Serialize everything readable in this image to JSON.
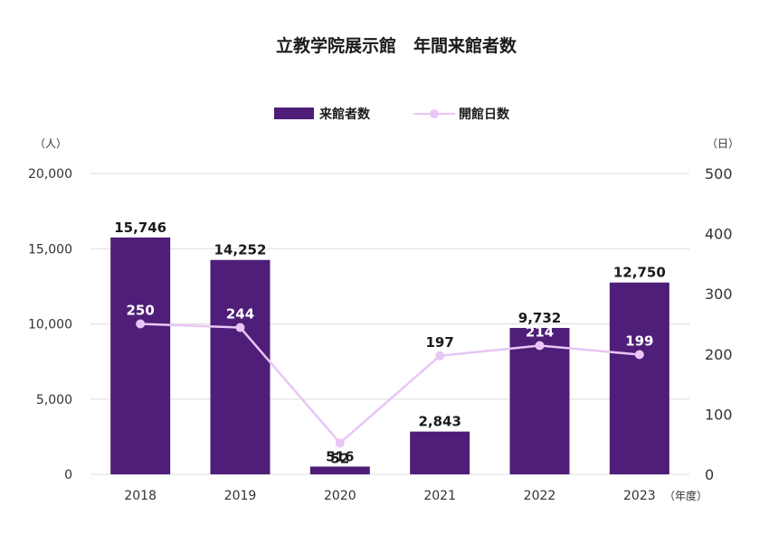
{
  "chart_data": {
    "type": "bar",
    "title": "立教学院展示館　年間来館者数",
    "categories": [
      "2018",
      "2019",
      "2020",
      "2021",
      "2022",
      "2023"
    ],
    "series": [
      {
        "name": "来館者数",
        "type": "bar",
        "axis": "left",
        "values": [
          15746,
          14252,
          516,
          2843,
          9732,
          12750
        ],
        "labels": [
          "15,746",
          "14,252",
          "516",
          "2,843",
          "9,732",
          "12,750"
        ],
        "color": "#4e1e78"
      },
      {
        "name": "開館日数",
        "type": "line",
        "axis": "right",
        "values": [
          250,
          244,
          52,
          197,
          214,
          199
        ],
        "labels": [
          "250",
          "244",
          "52",
          "197",
          "214",
          "199"
        ],
        "color": "#e8c6f5"
      }
    ],
    "y_left": {
      "unit": "（人）",
      "ylim": [
        0,
        20000
      ],
      "ticks": [
        "0",
        "5,000",
        "10,000",
        "15,000",
        "20,000"
      ]
    },
    "y_right": {
      "unit": "（日）",
      "ylim": [
        0,
        500
      ],
      "ticks": [
        "0",
        "100",
        "200",
        "300",
        "400",
        "500"
      ]
    },
    "x_unit": "（年度）",
    "legend_position": "top-center",
    "grid": true
  }
}
